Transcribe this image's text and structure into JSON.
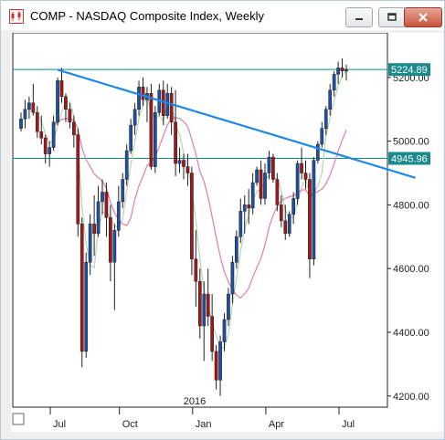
{
  "window": {
    "title": "COMP - NASDAQ Composite Index, Weekly",
    "icons": {
      "app": "stock-chart-icon",
      "minimize": "minimize-icon",
      "maximize": "maximize-icon",
      "close": "close-icon"
    }
  },
  "chart_data": {
    "type": "candlestick",
    "title": "",
    "y_ticks": [
      "5200.00",
      "5000.00",
      "4800.00",
      "4600.00",
      "4400.00",
      "4200.00"
    ],
    "x_ticks": [
      "Jul",
      "Oct",
      "Jan",
      "Apr",
      "Jul"
    ],
    "year_label": "2016",
    "ylim": [
      4165,
      5340
    ],
    "price_labels": [
      {
        "text": "5224.89",
        "value": 5224.89
      },
      {
        "text": "4945.96",
        "value": 4945.96
      }
    ],
    "horizontal_lines": [
      5224.89,
      4945.96
    ],
    "trendline": {
      "from_bar": 9,
      "from_value": 5224,
      "to_bar": 97,
      "to_value": 4885
    },
    "colors": {
      "up": "#1f4fa0",
      "down": "#a01818",
      "trendline": "#1e88e5",
      "hline": "#0f8b8b",
      "ma_fast": "#b4d4b4",
      "ma_slow": "#e57ba8",
      "price_label_bg": "#1a8a8a"
    },
    "candles": [
      [
        5040,
        5090,
        5030,
        5070
      ],
      [
        5070,
        5130,
        5040,
        5100
      ],
      [
        5100,
        5140,
        5070,
        5120
      ],
      [
        5120,
        5180,
        5080,
        5090
      ],
      [
        5090,
        5110,
        5010,
        5030
      ],
      [
        5030,
        5080,
        4990,
        5010
      ],
      [
        5010,
        5020,
        4930,
        4960
      ],
      [
        4960,
        5000,
        4920,
        4980
      ],
      [
        4980,
        5080,
        4970,
        5060
      ],
      [
        5060,
        5200,
        5050,
        5190
      ],
      [
        5190,
        5230,
        5120,
        5140
      ],
      [
        5140,
        5150,
        5060,
        5100
      ],
      [
        5100,
        5120,
        5040,
        5060
      ],
      [
        5060,
        5080,
        4980,
        5020
      ],
      [
        5020,
        5040,
        4700,
        4740
      ],
      [
        4740,
        4760,
        4290,
        4340
      ],
      [
        4340,
        4650,
        4320,
        4620
      ],
      [
        4620,
        4770,
        4580,
        4740
      ],
      [
        4740,
        4830,
        4640,
        4710
      ],
      [
        4710,
        4860,
        4700,
        4810
      ],
      [
        4810,
        4880,
        4770,
        4840
      ],
      [
        4840,
        4870,
        4700,
        4760
      ],
      [
        4760,
        4800,
        4560,
        4620
      ],
      [
        4620,
        4740,
        4470,
        4720
      ],
      [
        4720,
        4860,
        4700,
        4810
      ],
      [
        4810,
        4900,
        4790,
        4880
      ],
      [
        4880,
        4990,
        4860,
        4970
      ],
      [
        4970,
        5070,
        4960,
        5050
      ],
      [
        5050,
        5120,
        5020,
        5100
      ],
      [
        5100,
        5190,
        5080,
        5170
      ],
      [
        5170,
        5200,
        5110,
        5130
      ],
      [
        5130,
        5170,
        5060,
        5150
      ],
      [
        5150,
        5180,
        4910,
        4920
      ],
      [
        4920,
        5110,
        4900,
        5090
      ],
      [
        5090,
        5180,
        5080,
        5160
      ],
      [
        5160,
        5190,
        5050,
        5080
      ],
      [
        5080,
        5180,
        5070,
        5150
      ],
      [
        5150,
        5170,
        5020,
        5060
      ],
      [
        5060,
        5160,
        4890,
        4930
      ],
      [
        4930,
        4980,
        4900,
        4940
      ],
      [
        4940,
        4960,
        4880,
        4920
      ],
      [
        4920,
        4960,
        4860,
        4900
      ],
      [
        4900,
        4920,
        4580,
        4630
      ],
      [
        4630,
        4720,
        4480,
        4560
      ],
      [
        4560,
        4600,
        4380,
        4420
      ],
      [
        4420,
        4560,
        4310,
        4520
      ],
      [
        4520,
        4600,
        4420,
        4450
      ],
      [
        4450,
        4520,
        4310,
        4340
      ],
      [
        4340,
        4360,
        4220,
        4250
      ],
      [
        4250,
        4390,
        4200,
        4370
      ],
      [
        4370,
        4460,
        4340,
        4440
      ],
      [
        4440,
        4540,
        4420,
        4520
      ],
      [
        4520,
        4640,
        4490,
        4620
      ],
      [
        4620,
        4720,
        4600,
        4700
      ],
      [
        4700,
        4820,
        4680,
        4780
      ],
      [
        4780,
        4830,
        4710,
        4800
      ],
      [
        4800,
        4850,
        4740,
        4790
      ],
      [
        4790,
        4900,
        4770,
        4870
      ],
      [
        4870,
        4920,
        4860,
        4910
      ],
      [
        4910,
        4940,
        4800,
        4820
      ],
      [
        4820,
        4930,
        4800,
        4900
      ],
      [
        4900,
        4970,
        4880,
        4950
      ],
      [
        4950,
        4960,
        4870,
        4880
      ],
      [
        4880,
        4900,
        4780,
        4800
      ],
      [
        4800,
        4830,
        4730,
        4750
      ],
      [
        4750,
        4800,
        4690,
        4710
      ],
      [
        4710,
        4780,
        4700,
        4770
      ],
      [
        4770,
        4840,
        4740,
        4820
      ],
      [
        4820,
        4940,
        4800,
        4930
      ],
      [
        4930,
        4980,
        4880,
        4900
      ],
      [
        4900,
        4940,
        4850,
        4880
      ],
      [
        4880,
        4900,
        4570,
        4630
      ],
      [
        4630,
        4950,
        4610,
        4940
      ],
      [
        4940,
        5000,
        4930,
        4990
      ],
      [
        4990,
        5060,
        4980,
        5040
      ],
      [
        5040,
        5110,
        5020,
        5100
      ],
      [
        5100,
        5180,
        5080,
        5160
      ],
      [
        5160,
        5220,
        5140,
        5210
      ],
      [
        5210,
        5250,
        5180,
        5230
      ],
      [
        5230,
        5260,
        5200,
        5220
      ],
      [
        5220,
        5240,
        5190,
        5225
      ]
    ]
  }
}
